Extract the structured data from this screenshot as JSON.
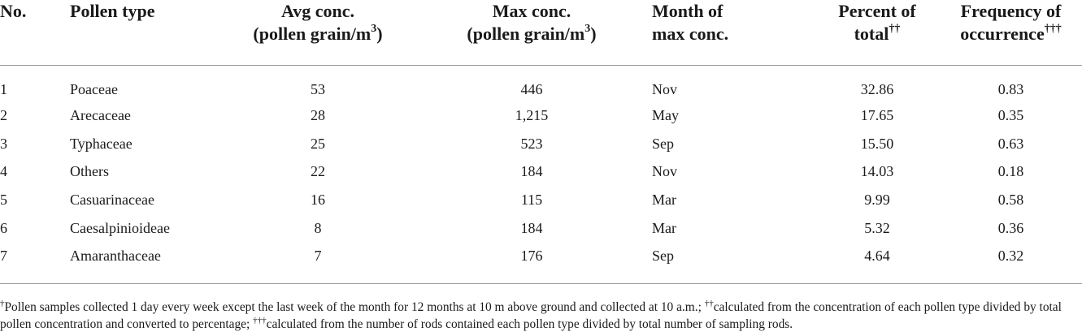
{
  "table": {
    "headers": {
      "no": [
        "No."
      ],
      "pollen_type": [
        "Pollen type"
      ],
      "avg_conc": [
        "Avg conc.",
        "(pollen grain/m",
        "3",
        ")"
      ],
      "max_conc": [
        "Max conc.",
        "(pollen grain/m",
        "3",
        ")"
      ],
      "month": [
        "Month of",
        "max conc."
      ],
      "percent": [
        "Percent of",
        "total",
        "††"
      ],
      "frequency": [
        "Frequency of",
        "occurrence",
        "†††"
      ]
    },
    "rows": [
      {
        "no": "1",
        "type": "Poaceae",
        "avg": "53",
        "max": "446",
        "month": "Nov",
        "percent": "32.86",
        "frequency": "0.83"
      },
      {
        "no": "2",
        "type": "Arecaceae",
        "avg": "28",
        "max": "1,215",
        "month": "May",
        "percent": "17.65",
        "frequency": "0.35"
      },
      {
        "no": "3",
        "type": "Typhaceae",
        "avg": "25",
        "max": "523",
        "month": "Sep",
        "percent": "15.50",
        "frequency": "0.63"
      },
      {
        "no": "4",
        "type": "Others",
        "avg": "22",
        "max": "184",
        "month": "Nov",
        "percent": "14.03",
        "frequency": "0.18"
      },
      {
        "no": "5",
        "type": "Casuarinaceae",
        "avg": "16",
        "max": "115",
        "month": "Mar",
        "percent": "9.99",
        "frequency": "0.58"
      },
      {
        "no": "6",
        "type": "Caesalpinioideae",
        "avg": "8",
        "max": "184",
        "month": "Mar",
        "percent": "5.32",
        "frequency": "0.36"
      },
      {
        "no": "7",
        "type": "Amaranthaceae",
        "avg": "7",
        "max": "176",
        "month": "Sep",
        "percent": "4.64",
        "frequency": "0.32"
      }
    ]
  },
  "footnote": {
    "mark1": "†",
    "text1": "Pollen samples collected 1 day every week except the last week of the month for 12 months at 10 m above ground and collected at 10 a.m.; ",
    "mark2": "††",
    "text2": "calculated from the concentration of each pollen type divided by total pollen concentration and converted to percentage; ",
    "mark3": "†††",
    "text3": "calculated from the number of rods contained each pollen type divided by total number of sampling rods."
  }
}
